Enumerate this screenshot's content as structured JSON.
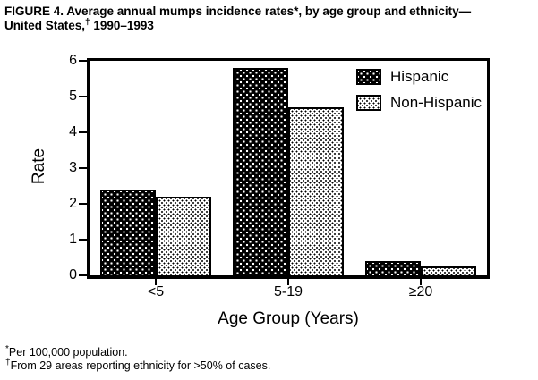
{
  "figure": {
    "title_line1": "FIGURE 4. Average annual mumps incidence rates*, by age group and ethnicity—",
    "title_line2_pre": "United States,",
    "title_line2_sup": "†",
    "title_line2_post": " 1990–1993"
  },
  "chart_data": {
    "type": "bar",
    "categories": [
      "<5",
      "5-19",
      "≥20"
    ],
    "series": [
      {
        "name": "Hispanic",
        "values": [
          2.4,
          5.8,
          0.4
        ],
        "pattern": "dark",
        "color": "#000000"
      },
      {
        "name": "Non-Hispanic",
        "values": [
          2.2,
          4.7,
          0.25
        ],
        "pattern": "light",
        "color": "#ffffff"
      }
    ],
    "title": "",
    "xlabel": "Age Group (Years)",
    "ylabel": "Rate",
    "ylim": [
      0,
      6
    ],
    "yticks": [
      0,
      1,
      2,
      3,
      4,
      5,
      6
    ],
    "legend_position": "top-right-inside",
    "grid": false,
    "bar_border_color": "#000000"
  },
  "footnotes": [
    {
      "marker": "*",
      "text": "Per 100,000 population."
    },
    {
      "marker": "†",
      "text": "From 29 areas reporting ethnicity for >50% of cases."
    }
  ]
}
